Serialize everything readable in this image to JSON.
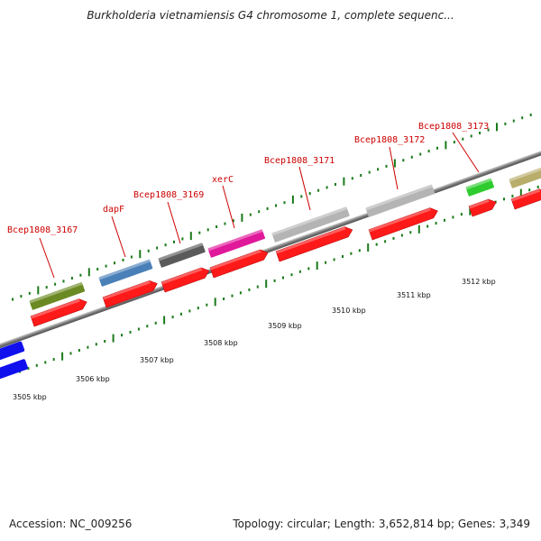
{
  "title": "Burkholderia vietnamiensis G4 chromosome 1, complete sequenc...",
  "footer": {
    "accession": "Accession: NC_009256",
    "summary": "Topology: circular; Length: 3,652,814 bp; Genes: 3,349"
  },
  "gene_labels": [
    "Bcep1808_3167",
    "dapF",
    "Bcep1808_3169",
    "xerC",
    "Bcep1808_3171",
    "Bcep1808_3172",
    "Bcep1808_3173"
  ],
  "kbp_labels": [
    "3505 kbp",
    "3506 kbp",
    "3507 kbp",
    "3508 kbp",
    "3509 kbp",
    "3510 kbp",
    "3511 kbp",
    "3512 kbp"
  ],
  "colors": {
    "cds": "#ff1a1a",
    "olive": "#6b8a23",
    "steelblue": "#4a80b8",
    "darkgray": "#5a5a5a",
    "magenta": "#e0189a",
    "lightgray": "#b4b4b4",
    "green": "#2ecc2e",
    "khaki": "#b8ad6a",
    "blue": "#1010ee",
    "tick": "#1a7a1a",
    "backbone": "#8a8a8a"
  }
}
